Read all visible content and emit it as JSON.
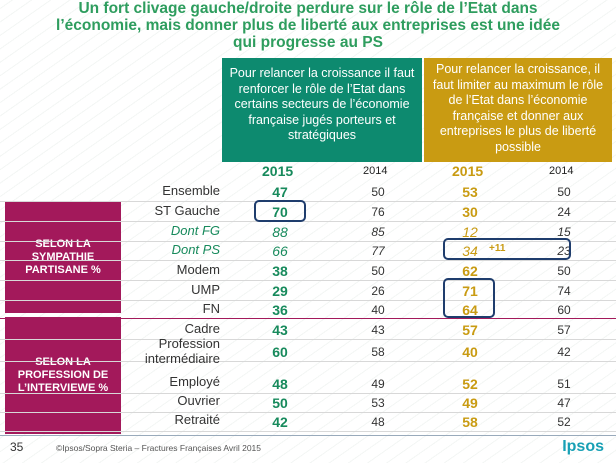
{
  "title": {
    "line1": "Un fort clivage gauche/droite perdure sur le rôle de l’Etat dans",
    "line2": "l’économie, mais donner plus de liberté aux entreprises est une idée",
    "line3": "qui progresse au PS"
  },
  "headers": {
    "green": "Pour relancer la croissance il faut renforcer le rôle de l’Etat dans certains secteurs de l’économie française jugés porteurs et stratégiques",
    "gold": "Pour relancer la croissance, il faut limiter au maximum le rôle de l’Etat dans l’économie française et donner aux entreprises le plus de liberté possible"
  },
  "years": {
    "current": "2015",
    "previous": "2014"
  },
  "groups": {
    "sympathie": "SELON LA SYMPATHIE PARTISANE %",
    "profession": "SELON LA PROFESSION DE L’INTERVIEWE %"
  },
  "rows": [
    {
      "label": "Ensemble",
      "g15": "47",
      "g14": "50",
      "y15": "53",
      "y14": "50"
    },
    {
      "label": "ST Gauche",
      "g15": "70",
      "g14": "76",
      "y15": "30",
      "y14": "24"
    },
    {
      "label": "Dont FG",
      "g15": "88",
      "g14": "85",
      "y15": "12",
      "y14": "15"
    },
    {
      "label": "Dont PS",
      "g15": "66",
      "g14": "77",
      "y15": "34",
      "y14": "23"
    },
    {
      "label": "Modem",
      "g15": "38",
      "g14": "50",
      "y15": "62",
      "y14": "50"
    },
    {
      "label": "UMP",
      "g15": "29",
      "g14": "26",
      "y15": "71",
      "y14": "74"
    },
    {
      "label": "FN",
      "g15": "36",
      "g14": "40",
      "y15": "64",
      "y14": "60"
    },
    {
      "label": "Cadre",
      "g15": "43",
      "g14": "43",
      "y15": "57",
      "y14": "57"
    },
    {
      "label": "Profession intermédiaire",
      "g15": "60",
      "g14": "58",
      "y15": "40",
      "y14": "42"
    },
    {
      "label": "Employé",
      "g15": "48",
      "g14": "49",
      "y15": "52",
      "y14": "51"
    },
    {
      "label": "Ouvrier",
      "g15": "50",
      "g14": "53",
      "y15": "49",
      "y14": "47"
    },
    {
      "label": "Retraité",
      "g15": "42",
      "g14": "48",
      "y15": "58",
      "y14": "52"
    }
  ],
  "diff_ps": "+11",
  "footer": {
    "page": "35",
    "source": "©Ipsos/Sopra Steria – Fractures Françaises Avril 2015",
    "brand": "Ipsos"
  },
  "colors": {
    "green": "#0d8a6f",
    "gold": "#c99b12",
    "pink": "#a3195b",
    "box": "#1f3d6d"
  }
}
